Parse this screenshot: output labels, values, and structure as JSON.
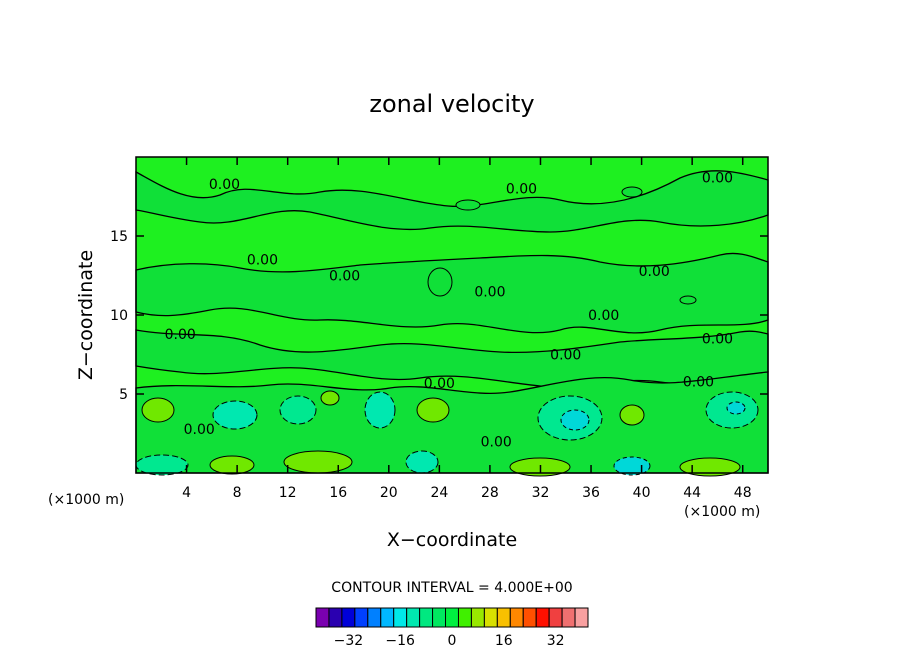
{
  "chart_data": {
    "type": "heatmap",
    "title": "zonal velocity",
    "xlabel": "X−coordinate",
    "ylabel": "Z−coordinate",
    "x_unit_label": "(×1000 m)",
    "y_unit_label": "(×1000 m)",
    "xlim": [
      0,
      50
    ],
    "ylim": [
      0,
      20
    ],
    "x_ticks": [
      4,
      8,
      12,
      16,
      20,
      24,
      28,
      32,
      36,
      40,
      44,
      48
    ],
    "x_tick_labels": [
      "4",
      "8",
      "12",
      "16",
      "20",
      "24",
      "28",
      "32",
      "36",
      "40",
      "44",
      "48"
    ],
    "y_ticks": [
      5,
      10,
      15
    ],
    "y_tick_labels": [
      "5",
      "10",
      "15"
    ],
    "contour_interval_text": "CONTOUR INTERVAL = 4.000E+00",
    "contour_labels": [
      {
        "text": "0.00",
        "x": 7,
        "z": 18.3
      },
      {
        "text": "0.00",
        "x": 30.5,
        "z": 18
      },
      {
        "text": "0.00",
        "x": 46,
        "z": 18.7
      },
      {
        "text": "0.00",
        "x": 10,
        "z": 13.5
      },
      {
        "text": "0.00",
        "x": 16.5,
        "z": 12.5
      },
      {
        "text": "0.00",
        "x": 41,
        "z": 12.8
      },
      {
        "text": "0.00",
        "x": 28,
        "z": 11.5
      },
      {
        "text": "0.00",
        "x": 37,
        "z": 10
      },
      {
        "text": "0.00",
        "x": 3.5,
        "z": 8.8
      },
      {
        "text": "0.00",
        "x": 46,
        "z": 8.5
      },
      {
        "text": "0.00",
        "x": 34,
        "z": 7.5
      },
      {
        "text": "0.00",
        "x": 24,
        "z": 5.7
      },
      {
        "text": "0.00",
        "x": 44.5,
        "z": 5.8
      },
      {
        "text": "0.00",
        "x": 5,
        "z": 2.8
      },
      {
        "text": "0.00",
        "x": 28.5,
        "z": 2
      }
    ],
    "colorbar": {
      "ticks": [
        -32,
        -16,
        0,
        16,
        32
      ],
      "tick_labels": [
        "−32",
        "−16",
        "0",
        "16",
        "32"
      ],
      "colors": [
        "#7a00b0",
        "#2a00b0",
        "#0000d8",
        "#0040ff",
        "#0080ff",
        "#00b8ff",
        "#00e8e8",
        "#00e8b0",
        "#00e880",
        "#00e860",
        "#00f040",
        "#40f000",
        "#98e800",
        "#d8e000",
        "#f8c000",
        "#ff8800",
        "#ff5000",
        "#ff1000",
        "#f04040",
        "#f07070",
        "#f8a0a0"
      ]
    }
  }
}
